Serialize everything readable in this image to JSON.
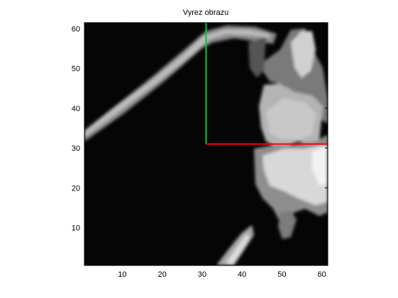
{
  "chart_data": {
    "type": "heatmap",
    "title": "Vyrez obrazu",
    "xlabel": "",
    "ylabel": "",
    "xlim": [
      0.5,
      61.5
    ],
    "ylim": [
      0.5,
      61.5
    ],
    "xticks": [
      10,
      20,
      30,
      40,
      50,
      60
    ],
    "yticks": [
      10,
      20,
      30,
      40,
      50,
      60
    ],
    "colormap": "gray",
    "grid": false,
    "series": [
      {
        "x": [
          31,
          31
        ],
        "y": [
          31,
          61.5
        ],
        "color": "#00cc33"
      },
      {
        "x": [
          31,
          61.5
        ],
        "y": [
          31,
          31
        ],
        "color": "#ff0000"
      }
    ]
  }
}
